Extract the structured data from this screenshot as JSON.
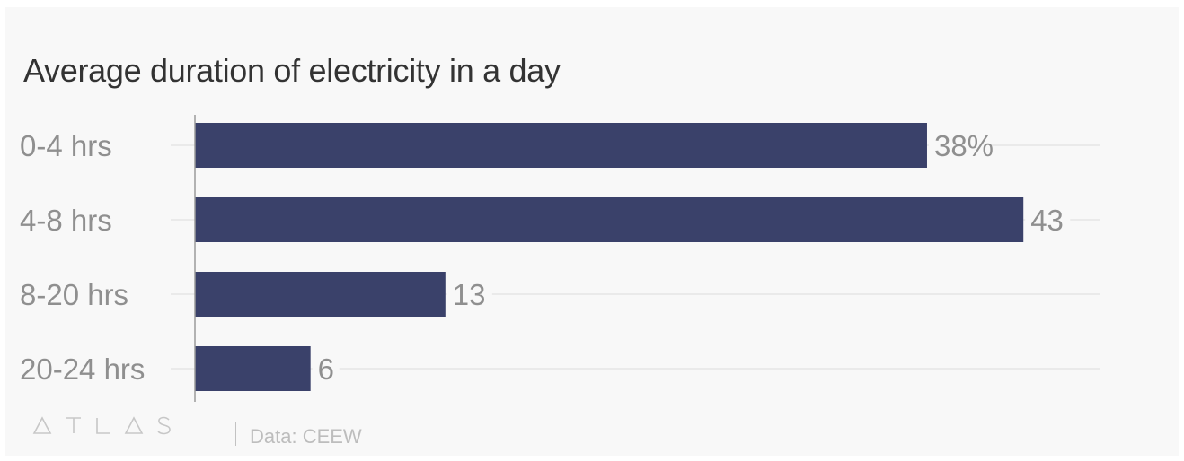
{
  "chart_data": {
    "type": "bar",
    "orientation": "horizontal",
    "title": "Average duration of electricity in a day",
    "categories": [
      "0-4 hrs",
      "4-8 hrs",
      "8-20 hrs",
      "20-24 hrs"
    ],
    "values": [
      38,
      43,
      13,
      6
    ],
    "value_labels": [
      "38%",
      "43",
      "13",
      "6"
    ],
    "unit": "%",
    "xlim": [
      0,
      47
    ],
    "grid": true,
    "bar_color": "#3a416a"
  },
  "footer": {
    "logo": "ATLAS",
    "source": "Data: CEEW"
  },
  "colors": {
    "background": "#f8f8f8",
    "bar": "#3a416a",
    "label": "#8f8f8f",
    "grid": "#e6e6e6",
    "axis": "#9a9a9a"
  }
}
